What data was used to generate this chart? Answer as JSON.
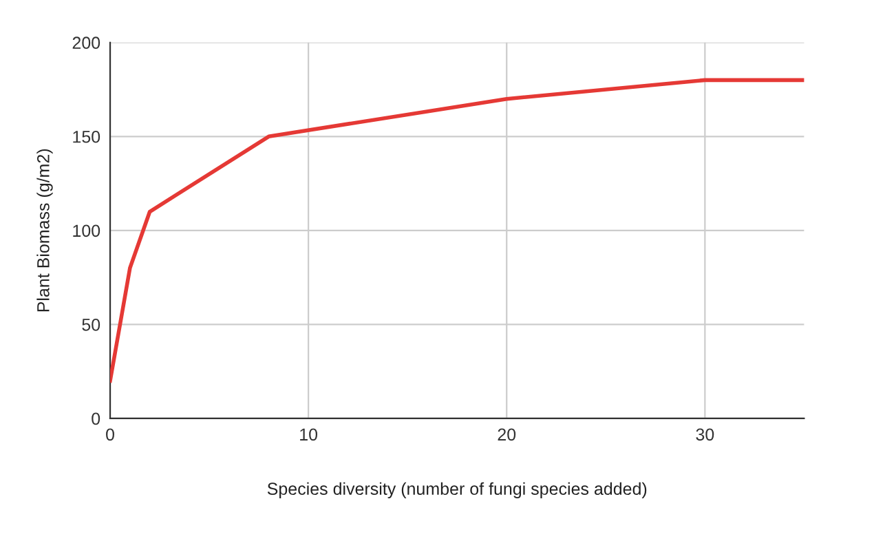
{
  "chart_data": {
    "type": "line",
    "xlabel": "Species diversity (number of fungi species added)",
    "ylabel": "Plant Biomass (g/m2)",
    "x": [
      0,
      1,
      2,
      8,
      20,
      30,
      35
    ],
    "series": [
      {
        "color": "#e53935",
        "values": [
          20,
          80,
          110,
          150,
          170,
          180,
          180
        ]
      }
    ],
    "xlim": [
      0,
      35
    ],
    "xticks": [
      0,
      10,
      20,
      30
    ],
    "ylim": [
      0,
      200
    ],
    "yticks": [
      0,
      50,
      100,
      150,
      200
    ],
    "grid": true,
    "marker": "none",
    "line_style": "solid"
  }
}
